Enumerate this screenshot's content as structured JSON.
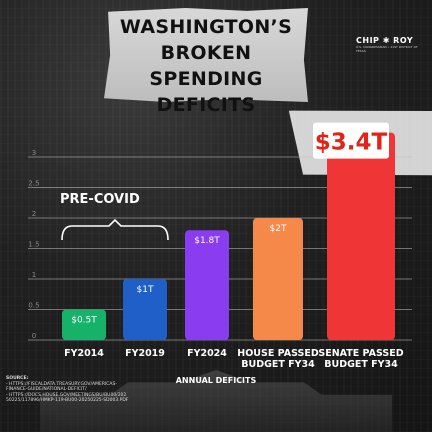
{
  "header": {
    "title_lines": [
      "WASHINGTON’S",
      "BROKEN  SPENDING",
      "DEFICITS"
    ]
  },
  "logo": {
    "main": "CHIP ✱ ROY",
    "sub": "U.S. CONGRESSMAN • 21ST DISTRICT OF TEXAS"
  },
  "annotation": {
    "precovid": "PRE-COVID"
  },
  "sources": {
    "heading": "SOURCE:",
    "lines": [
      "- HTTPS://FISCALDATA.TREASURY.GOV/AMERICAS-",
      "FINANCE-GUIDE/NATIONAL-DEFICIT/",
      "- HTTPS://DOCS.HOUSE.GOV/MEETINGS/BU/BU00/202",
      "50225/117896/HMKP-119-BU00-20250225-SD003.PDF"
    ]
  },
  "colors": {
    "fy2014": "#17b26a",
    "fy2019": "#1f5fc7",
    "fy2024": "#8a3cf0",
    "house": "#f5894a",
    "senate": "#ef3535",
    "grid": "#bdbdbd",
    "background": "#1c1c1c"
  },
  "chart_data": {
    "type": "bar",
    "title": "WASHINGTON’S BROKEN SPENDING DEFICITS",
    "xlabel": "ANNUAL DEFICITS",
    "ylabel": "",
    "ylim": [
      0,
      3.4
    ],
    "yticks": [
      "0",
      "0.5",
      "1",
      "1.5",
      "2",
      "2.5",
      "3"
    ],
    "ytick_values": [
      0,
      0.5,
      1,
      1.5,
      2,
      2.5,
      3
    ],
    "grid": true,
    "categories": [
      [
        "FY2014"
      ],
      [
        "FY2019"
      ],
      [
        "FY2024"
      ],
      [
        "HOUSE PASSED",
        "BUDGET FY34"
      ],
      [
        "SENATE PASSED",
        "BUDGET FY34"
      ]
    ],
    "values": [
      0.5,
      1.0,
      1.8,
      2.0,
      3.4
    ],
    "value_labels": [
      "$0.5T",
      "$1T",
      "$1.8T",
      "$2T",
      "$3.4T"
    ],
    "bar_colors": [
      "#17b26a",
      "#1f5fc7",
      "#8a3cf0",
      "#f5894a",
      "#ef3535"
    ],
    "annotations": [
      "PRE-COVID"
    ]
  }
}
